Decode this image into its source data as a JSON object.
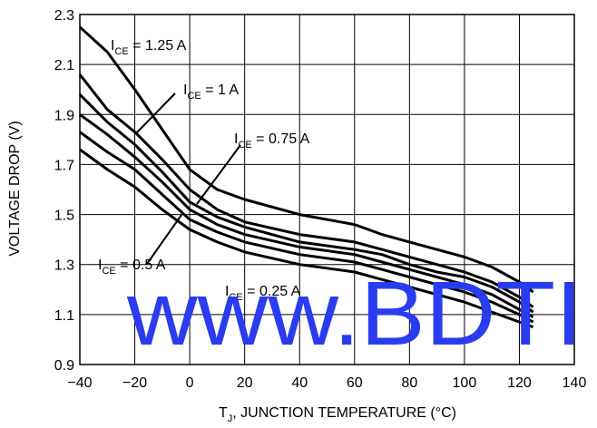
{
  "chart_data": {
    "type": "line",
    "title": "",
    "xlabel": {
      "main": "T",
      "sub": "J",
      "rest": ", JUNCTION TEMPERATURE (°C)"
    },
    "ylabel": "VOLTAGE DROP (V)",
    "xlim": [
      -40,
      140
    ],
    "ylim": [
      0.9,
      2.3
    ],
    "xticks": [
      "−40",
      "−20",
      "0",
      "20",
      "40",
      "60",
      "80",
      "100",
      "120",
      "140"
    ],
    "xtick_values": [
      -40,
      -20,
      0,
      20,
      40,
      60,
      80,
      100,
      120,
      140
    ],
    "yticks": [
      "0.9",
      "1.1",
      "1.3",
      "1.5",
      "1.7",
      "1.9",
      "2.1",
      "2.3"
    ],
    "ytick_values": [
      0.9,
      1.1,
      1.3,
      1.5,
      1.7,
      1.9,
      2.1,
      2.3
    ],
    "grid": true,
    "series": [
      {
        "name": "I_CE = 1.25 A",
        "x": [
          -40,
          -30,
          -20,
          -10,
          0,
          10,
          20,
          40,
          60,
          70,
          80,
          90,
          100,
          110,
          120,
          125
        ],
        "y": [
          2.25,
          2.15,
          2.0,
          1.84,
          1.68,
          1.6,
          1.56,
          1.5,
          1.46,
          1.42,
          1.39,
          1.36,
          1.33,
          1.29,
          1.23,
          1.19
        ]
      },
      {
        "name": "I_CE = 1 A",
        "x": [
          -40,
          -30,
          -20,
          -10,
          0,
          10,
          20,
          40,
          60,
          70,
          80,
          90,
          100,
          110,
          120,
          125
        ],
        "y": [
          2.06,
          1.92,
          1.83,
          1.72,
          1.6,
          1.52,
          1.47,
          1.42,
          1.39,
          1.36,
          1.33,
          1.3,
          1.27,
          1.23,
          1.17,
          1.13
        ]
      },
      {
        "name": "I_CE = 0.75 A",
        "x": [
          -40,
          -30,
          -20,
          -10,
          0,
          10,
          20,
          40,
          60,
          70,
          80,
          90,
          100,
          110,
          120,
          125
        ],
        "y": [
          1.98,
          1.87,
          1.78,
          1.67,
          1.55,
          1.49,
          1.45,
          1.39,
          1.36,
          1.34,
          1.3,
          1.27,
          1.25,
          1.21,
          1.15,
          1.11
        ]
      },
      {
        "name": "I_CE = 0.5 A",
        "x": [
          -40,
          -30,
          -20,
          -10,
          0,
          10,
          20,
          40,
          60,
          70,
          80,
          90,
          100,
          110,
          120,
          125
        ],
        "y": [
          1.9,
          1.82,
          1.73,
          1.63,
          1.52,
          1.46,
          1.42,
          1.37,
          1.34,
          1.31,
          1.28,
          1.25,
          1.22,
          1.18,
          1.12,
          1.09
        ]
      },
      {
        "name": "I_CE = 0.25 A",
        "x": [
          -40,
          -30,
          -20,
          -10,
          0,
          10,
          20,
          40,
          60,
          70,
          80,
          90,
          100,
          110,
          120,
          125
        ],
        "y": [
          1.83,
          1.75,
          1.68,
          1.58,
          1.48,
          1.43,
          1.39,
          1.34,
          1.31,
          1.28,
          1.25,
          1.22,
          1.19,
          1.15,
          1.1,
          1.07
        ]
      },
      {
        "name": "",
        "x": [
          -40,
          -30,
          -20,
          -10,
          0,
          10,
          20,
          40,
          60,
          70,
          80,
          90,
          100,
          110,
          120,
          125
        ],
        "y": [
          1.76,
          1.68,
          1.61,
          1.52,
          1.44,
          1.39,
          1.35,
          1.3,
          1.27,
          1.24,
          1.21,
          1.18,
          1.15,
          1.11,
          1.07,
          1.05
        ]
      }
    ],
    "annotations": [
      {
        "main": "I",
        "sub": "CE",
        "rest": " = 1.25 A"
      },
      {
        "main": "I",
        "sub": "CE",
        "rest": " = 1 A"
      },
      {
        "main": "I",
        "sub": "CE",
        "rest": " = 0.75 A"
      },
      {
        "main": "I",
        "sub": "CE",
        "rest": " = 0.5 A"
      },
      {
        "main": "I",
        "sub": "CE",
        "rest": " = 0.25 A"
      }
    ],
    "watermark": "www.BDTI",
    "line_color": "#000000",
    "watermark_color": "#2a3cf0"
  }
}
